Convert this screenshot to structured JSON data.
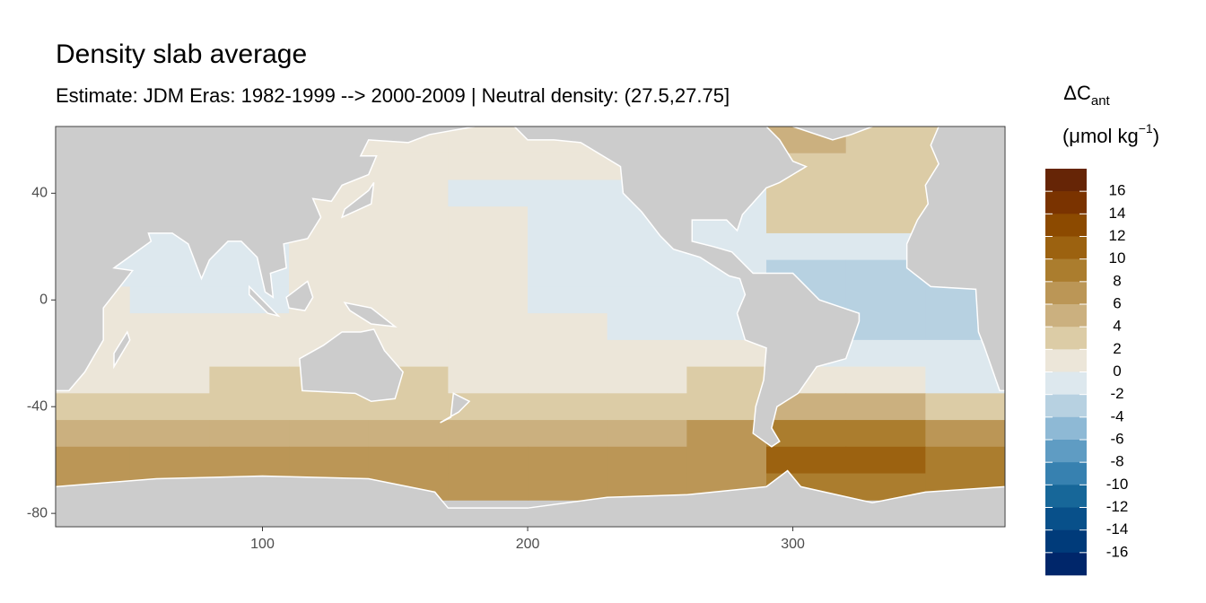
{
  "chart_data": {
    "type": "heatmap",
    "title": "Density slab average",
    "subtitle": "Estimate: JDM Eras: 1982-1999 --> 2000-2009 | Neutral density: (27.5,27.75]",
    "xlim": [
      22,
      380
    ],
    "ylim": [
      -85,
      65
    ],
    "xticks": [
      100,
      200,
      300
    ],
    "yticks": [
      40,
      0,
      -40,
      -80
    ],
    "xbins": [
      20,
      50,
      80,
      110,
      140,
      170,
      200,
      230,
      260,
      290,
      320,
      350,
      380
    ],
    "ybins": [
      65,
      55,
      45,
      35,
      25,
      15,
      5,
      -5,
      -15,
      -25,
      -35,
      -45,
      -55,
      -65,
      -75
    ],
    "values": [
      [
        1,
        1,
        1,
        1,
        1,
        1,
        1,
        1,
        1,
        5,
        3,
        3
      ],
      [
        1,
        1,
        1,
        1,
        1,
        1,
        1,
        1,
        1,
        3,
        3,
        3
      ],
      [
        1,
        1,
        1,
        1,
        1,
        -1,
        -1,
        -1,
        -1,
        3,
        3,
        3
      ],
      [
        1,
        1,
        1,
        1,
        1,
        1,
        -1,
        -1,
        -1,
        3,
        3,
        3
      ],
      [
        -1,
        -1,
        -1,
        1,
        1,
        1,
        -1,
        -1,
        -1,
        -1,
        -1,
        -1
      ],
      [
        -1,
        -1,
        -1,
        1,
        1,
        1,
        -1,
        -1,
        -1,
        -3,
        -3,
        -3
      ],
      [
        1,
        -1,
        -1,
        1,
        1,
        1,
        -1,
        -1,
        -1,
        -3,
        -3,
        -3
      ],
      [
        1,
        1,
        1,
        1,
        1,
        1,
        1,
        -1,
        -1,
        -3,
        -3,
        -3
      ],
      [
        1,
        1,
        1,
        1,
        1,
        1,
        1,
        1,
        1,
        -1,
        -1,
        -1
      ],
      [
        1,
        1,
        3,
        3,
        3,
        1,
        1,
        1,
        3,
        1,
        1,
        -1
      ],
      [
        3,
        3,
        3,
        3,
        3,
        3,
        3,
        3,
        3,
        5,
        5,
        3
      ],
      [
        5,
        5,
        5,
        5,
        5,
        5,
        5,
        5,
        7,
        9,
        9,
        7
      ],
      [
        7,
        7,
        7,
        7,
        7,
        7,
        7,
        7,
        7,
        11,
        11,
        9
      ],
      [
        7,
        7,
        7,
        7,
        7,
        7,
        7,
        7,
        7,
        9,
        9,
        9
      ]
    ],
    "legend": {
      "title": "ΔC",
      "title_sub": "ant",
      "unit": "(μmol kg",
      "unit_sup": "−1",
      "unit_end": ")",
      "levels": [
        18,
        16,
        14,
        12,
        10,
        8,
        6,
        4,
        2,
        0,
        -2,
        -4,
        -6,
        -8,
        -10,
        -12,
        -14,
        -16,
        -18
      ],
      "colors": [
        "#662506",
        "#7a3300",
        "#8c4a00",
        "#9c6210",
        "#ab7d2e",
        "#bb9656",
        "#cbb07f",
        "#dccca6",
        "#ece6d9",
        "#dde8ee",
        "#b7d1e1",
        "#8eb9d5",
        "#5f9cc3",
        "#3781b0",
        "#176799",
        "#08508a",
        "#003b7a",
        "#00266a"
      ],
      "ticks": [
        16,
        14,
        12,
        10,
        8,
        6,
        4,
        2,
        0,
        -2,
        -4,
        -6,
        -8,
        -10,
        -12,
        -14,
        -16
      ]
    }
  }
}
